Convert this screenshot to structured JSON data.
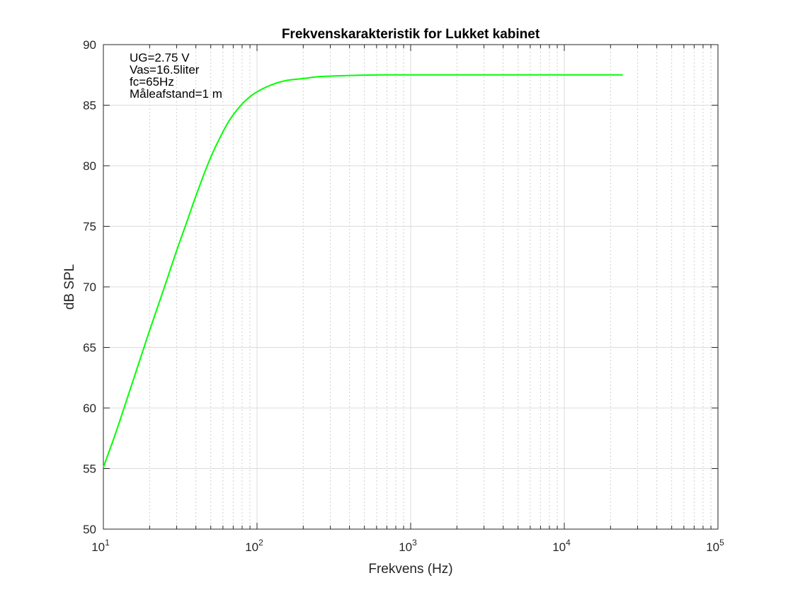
{
  "chart_data": {
    "type": "line",
    "title": "Frekvenskarakteristik for Lukket kabinet",
    "xlabel": "Frekvens (Hz)",
    "ylabel": "dB SPL",
    "x_scale": "log",
    "xlim": [
      10,
      100000
    ],
    "ylim": [
      50,
      90
    ],
    "grid": true,
    "x_ticks": [
      {
        "base": "10",
        "exp": "1"
      },
      {
        "base": "10",
        "exp": "2"
      },
      {
        "base": "10",
        "exp": "3"
      },
      {
        "base": "10",
        "exp": "4"
      },
      {
        "base": "10",
        "exp": "5"
      }
    ],
    "y_ticks": [
      "50",
      "55",
      "60",
      "65",
      "70",
      "75",
      "80",
      "85",
      "90"
    ],
    "annotations": [
      "UG=2.75 V",
      "Vas=16.5liter",
      "fc=65Hz",
      "Måleafstand=1 m"
    ],
    "series": [
      {
        "color": "#00ff00",
        "x": [
          10,
          12,
          15,
          20,
          25,
          30,
          35,
          40,
          50,
          60,
          65,
          70,
          80,
          90,
          100,
          120,
          150,
          200,
          250,
          300,
          400,
          500,
          700,
          1000,
          2000,
          5000,
          10000,
          24000
        ],
        "y": [
          55.1,
          57.9,
          61.6,
          66.4,
          70.0,
          73.0,
          75.4,
          77.5,
          80.7,
          82.8,
          83.6,
          84.2,
          85.1,
          85.7,
          86.1,
          86.6,
          87.0,
          87.2,
          87.35,
          87.4,
          87.45,
          87.48,
          87.5,
          87.5,
          87.5,
          87.5,
          87.5,
          87.5
        ]
      }
    ]
  }
}
